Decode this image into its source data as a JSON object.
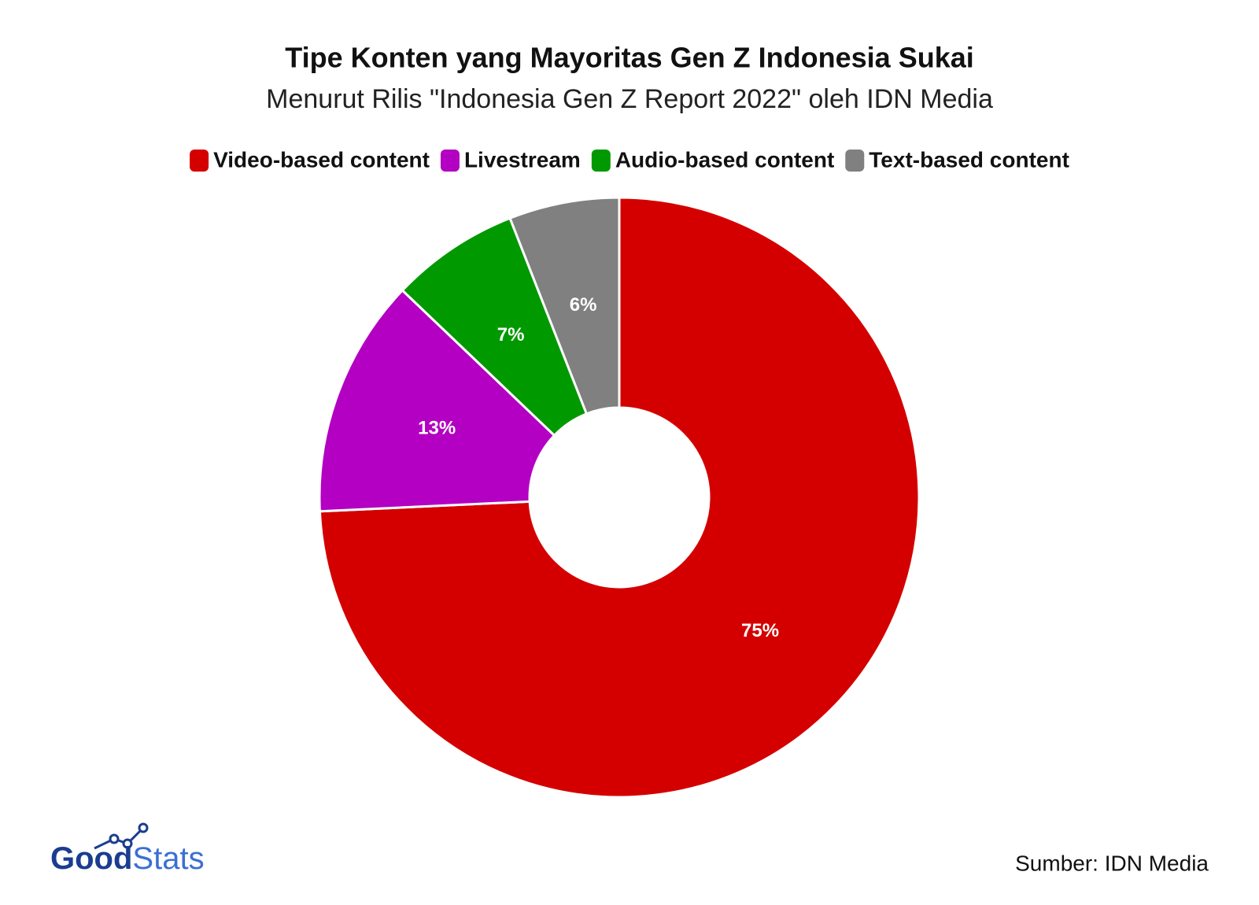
{
  "chart_data": {
    "type": "donut",
    "title": "Tipe Konten yang Mayoritas Gen Z Indonesia Sukai",
    "subtitle": "Menurut Rilis \"Indonesia Gen Z Report 2022\" oleh IDN Media",
    "categories": [
      "Video-based content",
      "Livestream",
      "Audio-based content",
      "Text-based content"
    ],
    "values": [
      75,
      13,
      7,
      6
    ],
    "value_labels": [
      "75%",
      "13%",
      "7%",
      "6%"
    ],
    "colors": [
      "#d40000",
      "#b300c2",
      "#009900",
      "#808080"
    ],
    "legend": "top",
    "source": "Sumber: IDN Media"
  },
  "logo": [
    "Good",
    "Stats"
  ]
}
